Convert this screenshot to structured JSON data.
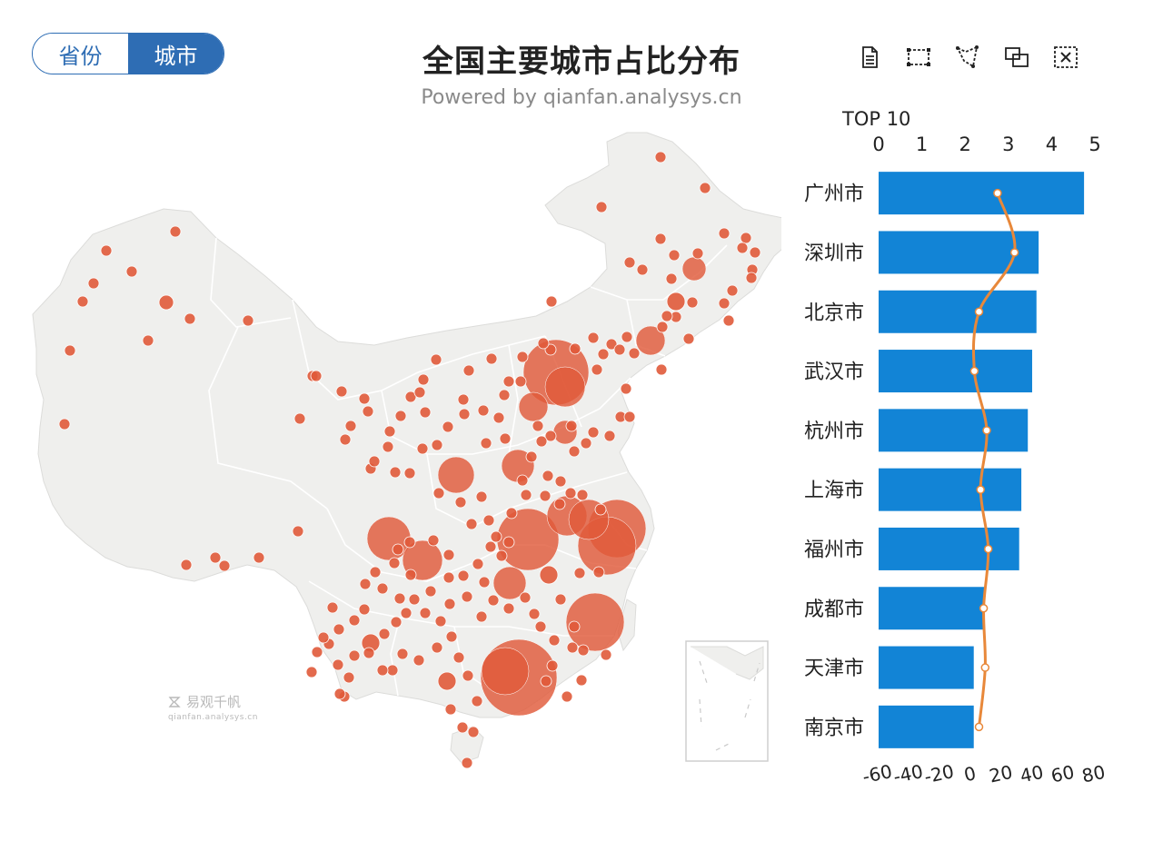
{
  "toggle": {
    "options": [
      "省份",
      "城市"
    ],
    "active_index": 1
  },
  "title": "全国主要城市占比分布",
  "subtitle": "Powered by qianfan.analysys.cn",
  "toolbox": [
    "data-view-icon",
    "rect-select-icon",
    "lasso-select-icon",
    "keep-select-icon",
    "clear-select-icon"
  ],
  "watermark": {
    "name": "易观千帆",
    "url": "qianfan.analysys.cn"
  },
  "colors": {
    "bar": "#1284d6",
    "line": "#e8883a",
    "bubble": "#e05a3a",
    "map_fill": "#efefed",
    "map_stroke": "#ffffff"
  },
  "chart_data": [
    {
      "type": "bar",
      "title": "TOP 10",
      "categories": [
        "广州市",
        "深圳市",
        "北京市",
        "武汉市",
        "杭州市",
        "上海市",
        "福州市",
        "成都市",
        "天津市",
        "南京市"
      ],
      "top_axis": {
        "ticks": [
          0,
          1,
          2,
          3,
          4,
          5
        ],
        "range": [
          0,
          5
        ]
      },
      "bottom_axis": {
        "ticks": [
          -60,
          -40,
          -20,
          0,
          20,
          40,
          60,
          80
        ],
        "range": [
          -60,
          80
        ]
      },
      "series": [
        {
          "type": "bar",
          "axis": "top",
          "values": [
            4.75,
            3.7,
            3.65,
            3.55,
            3.45,
            3.3,
            3.25,
            2.45,
            2.2,
            2.2
          ]
        },
        {
          "type": "line",
          "smooth": true,
          "axis": "bottom",
          "values": [
            17,
            28,
            5,
            2,
            10,
            6,
            11,
            8,
            9,
            5
          ]
        }
      ]
    },
    {
      "type": "scatter",
      "subtype": "bubble-map",
      "region": "China",
      "bubbles": [
        [
          727,
          173,
          6
        ],
        [
          776,
          207,
          6
        ],
        [
          662,
          228,
          6
        ],
        [
          193,
          255,
          6
        ],
        [
          117,
          276,
          6
        ],
        [
          103,
          312,
          6
        ],
        [
          145,
          299,
          6
        ],
        [
          183,
          333,
          8
        ],
        [
          91,
          332,
          6
        ],
        [
          209,
          351,
          6
        ],
        [
          273,
          353,
          6
        ],
        [
          163,
          375,
          6
        ],
        [
          77,
          386,
          6
        ],
        [
          71,
          467,
          6
        ],
        [
          821,
          262,
          6
        ],
        [
          831,
          278,
          6
        ],
        [
          817,
          273,
          6
        ],
        [
          797,
          257,
          6
        ],
        [
          828,
          297,
          6
        ],
        [
          827,
          306,
          6
        ],
        [
          768,
          279,
          6
        ],
        [
          742,
          281,
          6
        ],
        [
          727,
          263,
          6
        ],
        [
          707,
          297,
          6
        ],
        [
          693,
          289,
          6
        ],
        [
          764,
          296,
          13
        ],
        [
          739,
          307,
          6
        ],
        [
          744,
          332,
          10
        ],
        [
          762,
          333,
          6
        ],
        [
          806,
          320,
          6
        ],
        [
          797,
          334,
          6
        ],
        [
          802,
          353,
          6
        ],
        [
          744,
          349,
          6
        ],
        [
          734,
          348,
          6
        ],
        [
          729,
          360,
          6
        ],
        [
          716,
          375,
          16
        ],
        [
          690,
          371,
          6
        ],
        [
          673,
          379,
          6
        ],
        [
          682,
          385,
          6
        ],
        [
          698,
          389,
          6
        ],
        [
          758,
          373,
          6
        ],
        [
          728,
          407,
          6
        ],
        [
          607,
          332,
          6
        ],
        [
          612,
          410,
          36
        ],
        [
          622,
          426,
          22
        ],
        [
          587,
          448,
          16
        ],
        [
          622,
          476,
          13
        ],
        [
          570,
          513,
          18
        ],
        [
          502,
          523,
          20
        ],
        [
          428,
          593,
          24
        ],
        [
          465,
          617,
          22
        ],
        [
          581,
          594,
          34
        ],
        [
          624,
          568,
          22
        ],
        [
          648,
          572,
          22
        ],
        [
          679,
          582,
          32
        ],
        [
          668,
          601,
          32
        ],
        [
          604,
          633,
          10
        ],
        [
          561,
          642,
          18
        ],
        [
          655,
          685,
          32
        ],
        [
          571,
          746,
          42
        ],
        [
          556,
          739,
          26
        ],
        [
          344,
          414,
          6
        ],
        [
          348,
          414,
          6
        ],
        [
          376,
          431,
          6
        ],
        [
          401,
          439,
          6
        ],
        [
          405,
          453,
          6
        ],
        [
          386,
          469,
          6
        ],
        [
          380,
          484,
          6
        ],
        [
          330,
          461,
          6
        ],
        [
          328,
          585,
          6
        ],
        [
          285,
          614,
          6
        ],
        [
          237,
          614,
          6
        ],
        [
          247,
          623,
          6
        ],
        [
          205,
          622,
          6
        ],
        [
          541,
          395,
          6
        ],
        [
          575,
          393,
          6
        ],
        [
          516,
          408,
          6
        ],
        [
          480,
          396,
          6
        ],
        [
          466,
          418,
          6
        ],
        [
          452,
          437,
          6
        ],
        [
          462,
          432,
          6
        ],
        [
          468,
          454,
          6
        ],
        [
          441,
          458,
          6
        ],
        [
          429,
          475,
          6
        ],
        [
          427,
          492,
          6
        ],
        [
          408,
          516,
          6
        ],
        [
          412,
          508,
          6
        ],
        [
          435,
          520,
          6
        ],
        [
          451,
          521,
          6
        ],
        [
          465,
          494,
          6
        ],
        [
          481,
          490,
          6
        ],
        [
          493,
          470,
          6
        ],
        [
          510,
          440,
          6
        ],
        [
          511,
          456,
          6
        ],
        [
          532,
          452,
          6
        ],
        [
          535,
          488,
          6
        ],
        [
          556,
          483,
          6
        ],
        [
          549,
          460,
          6
        ],
        [
          555,
          435,
          6
        ],
        [
          560,
          420,
          6
        ],
        [
          573,
          420,
          6
        ],
        [
          592,
          469,
          6
        ],
        [
          606,
          480,
          6
        ],
        [
          596,
          486,
          6
        ],
        [
          585,
          503,
          6
        ],
        [
          575,
          529,
          6
        ],
        [
          579,
          545,
          6
        ],
        [
          600,
          546,
          6
        ],
        [
          603,
          524,
          6
        ],
        [
          617,
          530,
          6
        ],
        [
          632,
          497,
          6
        ],
        [
          629,
          469,
          6
        ],
        [
          645,
          488,
          6
        ],
        [
          653,
          476,
          6
        ],
        [
          671,
          480,
          6
        ],
        [
          683,
          459,
          6
        ],
        [
          693,
          459,
          6
        ],
        [
          689,
          428,
          6
        ],
        [
          657,
          407,
          6
        ],
        [
          664,
          390,
          6
        ],
        [
          653,
          372,
          6
        ],
        [
          633,
          384,
          6
        ],
        [
          606,
          385,
          6
        ],
        [
          598,
          378,
          6
        ],
        [
          483,
          543,
          6
        ],
        [
          507,
          553,
          6
        ],
        [
          530,
          547,
          6
        ],
        [
          519,
          577,
          6
        ],
        [
          538,
          573,
          6
        ],
        [
          546,
          591,
          6
        ],
        [
          552,
          612,
          6
        ],
        [
          526,
          621,
          6
        ],
        [
          510,
          634,
          6
        ],
        [
          494,
          636,
          6
        ],
        [
          474,
          651,
          6
        ],
        [
          456,
          660,
          6
        ],
        [
          440,
          659,
          6
        ],
        [
          421,
          648,
          6
        ],
        [
          413,
          630,
          6
        ],
        [
          402,
          643,
          6
        ],
        [
          401,
          671,
          6
        ],
        [
          390,
          683,
          6
        ],
        [
          373,
          693,
          6
        ],
        [
          362,
          709,
          6
        ],
        [
          349,
          718,
          6
        ],
        [
          372,
          732,
          6
        ],
        [
          390,
          722,
          6
        ],
        [
          408,
          708,
          10
        ],
        [
          423,
          698,
          6
        ],
        [
          436,
          685,
          6
        ],
        [
          447,
          675,
          6
        ],
        [
          468,
          675,
          6
        ],
        [
          485,
          684,
          6
        ],
        [
          497,
          701,
          6
        ],
        [
          481,
          713,
          6
        ],
        [
          461,
          727,
          6
        ],
        [
          443,
          720,
          6
        ],
        [
          432,
          738,
          6
        ],
        [
          421,
          738,
          6
        ],
        [
          406,
          719,
          6
        ],
        [
          384,
          746,
          6
        ],
        [
          379,
          767,
          6
        ],
        [
          492,
          750,
          10
        ],
        [
          505,
          724,
          6
        ],
        [
          515,
          744,
          6
        ],
        [
          525,
          772,
          6
        ],
        [
          496,
          781,
          6
        ],
        [
          509,
          801,
          6
        ],
        [
          521,
          806,
          6
        ],
        [
          514,
          840,
          6
        ],
        [
          530,
          679,
          6
        ],
        [
          543,
          661,
          6
        ],
        [
          560,
          670,
          6
        ],
        [
          578,
          658,
          6
        ],
        [
          588,
          676,
          6
        ],
        [
          595,
          690,
          6
        ],
        [
          610,
          705,
          6
        ],
        [
          630,
          713,
          6
        ],
        [
          632,
          690,
          6
        ],
        [
          617,
          660,
          6
        ],
        [
          638,
          631,
          6
        ],
        [
          659,
          630,
          6
        ],
        [
          601,
          750,
          6
        ],
        [
          608,
          733,
          6
        ],
        [
          624,
          767,
          6
        ],
        [
          640,
          749,
          6
        ],
        [
          642,
          716,
          6
        ],
        [
          667,
          721,
          6
        ],
        [
          661,
          561,
          6
        ],
        [
          641,
          545,
          6
        ],
        [
          628,
          543,
          6
        ],
        [
          616,
          555,
          6
        ],
        [
          563,
          565,
          6
        ],
        [
          560,
          597,
          6
        ],
        [
          540,
          602,
          6
        ],
        [
          533,
          641,
          6
        ],
        [
          514,
          657,
          6
        ],
        [
          495,
          665,
          6
        ],
        [
          494,
          611,
          6
        ],
        [
          477,
          595,
          6
        ],
        [
          451,
          597,
          6
        ],
        [
          438,
          605,
          6
        ],
        [
          434,
          620,
          6
        ],
        [
          452,
          633,
          6
        ],
        [
          366,
          669,
          6
        ],
        [
          356,
          702,
          6
        ],
        [
          374,
          764,
          6
        ],
        [
          343,
          740,
          6
        ]
      ]
    }
  ]
}
